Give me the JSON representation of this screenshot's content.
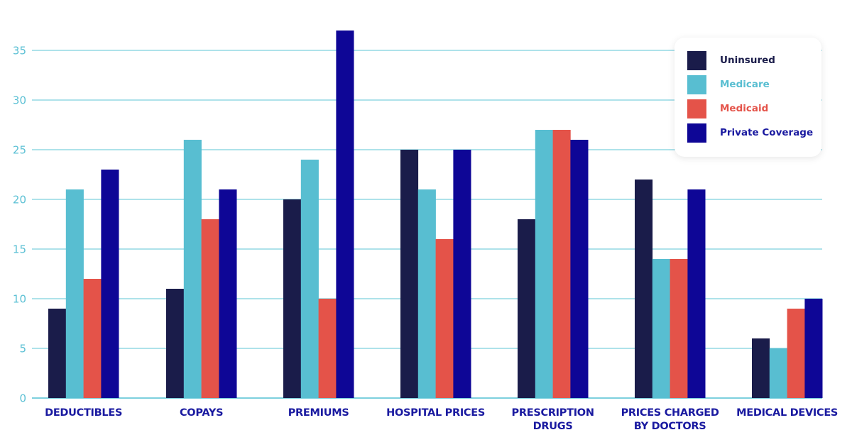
{
  "chart_data": {
    "type": "bar",
    "title": "",
    "xlabel": "",
    "ylabel": "",
    "ylim": [
      0,
      37
    ],
    "yticks": [
      0,
      5,
      10,
      15,
      20,
      25,
      30,
      35
    ],
    "grid": true,
    "legend_position": "top-right",
    "categories": [
      [
        "DEDUCTIBLES"
      ],
      [
        "COPAYS"
      ],
      [
        "PREMIUMS"
      ],
      [
        "HOSPITAL PRICES"
      ],
      [
        "PRESCRIPTION",
        "DRUGS"
      ],
      [
        "PRICES CHARGED",
        "BY DOCTORS"
      ],
      [
        "MEDICAL DEVICES"
      ]
    ],
    "series": [
      {
        "name": "Uninsured",
        "color": "#1a1c4a",
        "label_color": "#1a1c4a",
        "values": [
          9,
          11,
          20,
          25,
          18,
          22,
          6
        ]
      },
      {
        "name": "Medicare",
        "color": "#58bed1",
        "label_color": "#58bed1",
        "values": [
          21,
          26,
          24,
          21,
          27,
          14,
          5
        ]
      },
      {
        "name": "Medicaid",
        "color": "#e45349",
        "label_color": "#e45349",
        "values": [
          12,
          18,
          10,
          16,
          27,
          14,
          9
        ]
      },
      {
        "name": "Private Coverage",
        "color": "#0e0696",
        "label_color": "#1a1aa0",
        "values": [
          23,
          21,
          37,
          25,
          26,
          21,
          10
        ]
      }
    ],
    "colors": {
      "grid": "#7dd0de",
      "ytick": "#5bc0d4",
      "xtick": "#1a1aa0"
    }
  }
}
